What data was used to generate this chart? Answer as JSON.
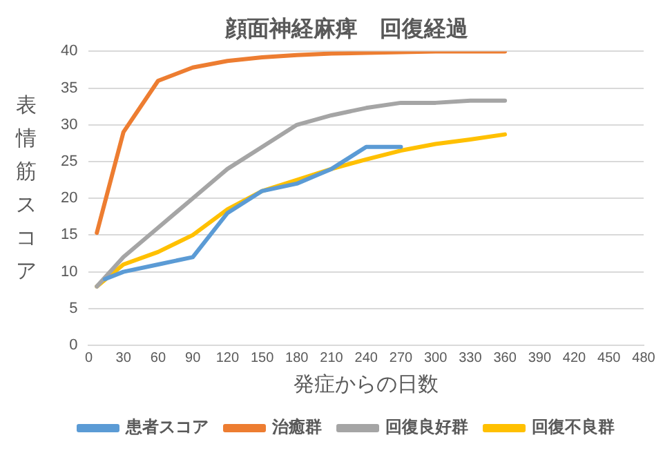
{
  "chart_data": {
    "type": "line",
    "title": "顔面神経麻痺　回復経過",
    "xlabel": "発症からの日数",
    "ylabel": "表情筋スコア",
    "xlim": [
      0,
      480
    ],
    "xticks": [
      0,
      30,
      60,
      90,
      120,
      150,
      180,
      210,
      240,
      270,
      300,
      330,
      360,
      390,
      420,
      450,
      480
    ],
    "ylim": [
      0,
      40
    ],
    "yticks": [
      0,
      5,
      10,
      15,
      20,
      25,
      30,
      35,
      40
    ],
    "grid": "y",
    "legend": "bottom",
    "marker": "none",
    "line_style": "solid",
    "series": [
      {
        "name": "患者スコア",
        "color": "#5b9bd5",
        "x": [
          14,
          30,
          60,
          90,
          120,
          150,
          180,
          210,
          240,
          270
        ],
        "values": [
          9,
          10,
          11,
          12,
          18,
          21,
          22,
          24,
          27,
          27
        ]
      },
      {
        "name": "治癒群",
        "color": "#ed7d31",
        "x": [
          7,
          30,
          60,
          90,
          120,
          150,
          180,
          210,
          240,
          270,
          300,
          330,
          360
        ],
        "values": [
          15.3,
          29,
          36,
          37.8,
          38.7,
          39.2,
          39.5,
          39.7,
          39.8,
          39.9,
          40,
          40,
          40
        ]
      },
      {
        "name": "回復良好群",
        "color": "#a5a5a5",
        "x": [
          7,
          30,
          60,
          90,
          120,
          150,
          180,
          210,
          240,
          270,
          300,
          330,
          360
        ],
        "values": [
          8,
          12,
          16,
          20,
          24,
          27,
          30,
          31.3,
          32.3,
          33,
          33,
          33.3,
          33.3
        ]
      },
      {
        "name": "回復不良群",
        "color": "#ffc000",
        "x": [
          7,
          30,
          60,
          90,
          120,
          150,
          180,
          210,
          240,
          270,
          300,
          330,
          360
        ],
        "values": [
          8,
          11,
          12.7,
          15,
          18.5,
          21,
          22.5,
          24,
          25.3,
          26.5,
          27.4,
          28,
          28.7
        ]
      }
    ]
  }
}
